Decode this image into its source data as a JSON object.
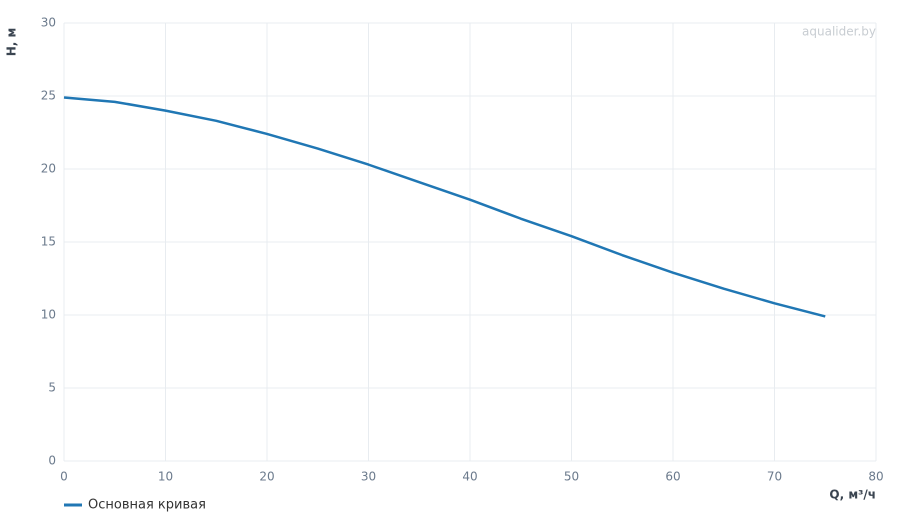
{
  "chart_data": {
    "type": "line",
    "x_label": "Q, м³/ч",
    "y_label": "H, м",
    "watermark": "aqualider.by",
    "x": [
      0,
      5,
      10,
      15,
      20,
      25,
      30,
      35,
      40,
      45,
      50,
      55,
      60,
      65,
      70,
      75
    ],
    "series": [
      {
        "name": "Основная кривая",
        "color": "#2077b4",
        "values": [
          24.9,
          24.6,
          24.0,
          23.3,
          22.4,
          21.4,
          20.3,
          19.1,
          17.9,
          16.6,
          15.4,
          14.1,
          12.9,
          11.8,
          10.8,
          9.9
        ]
      }
    ],
    "xlim": [
      0,
      80
    ],
    "xticks": [
      0,
      10,
      20,
      30,
      40,
      50,
      60,
      70,
      80
    ],
    "ylim": [
      0,
      30
    ],
    "yticks": [
      0,
      5,
      10,
      15,
      20,
      25,
      30
    ],
    "grid": true
  }
}
